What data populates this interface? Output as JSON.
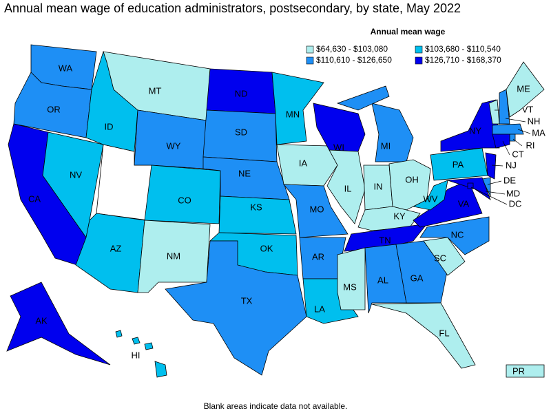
{
  "title": "Annual mean wage of education administrators, postsecondary, by state, May 2022",
  "legend": {
    "title": "Annual mean wage",
    "items": [
      {
        "label": "$64,630 - $103,080",
        "color": "#aeeeee"
      },
      {
        "label": "$103,680 - $110,540",
        "color": "#00bfee"
      },
      {
        "label": "$110,610 - $126,650",
        "color": "#1e8ff5"
      },
      {
        "label": "$126,710 - $168,370",
        "color": "#0000ee"
      }
    ]
  },
  "states": [
    {
      "label": "WA",
      "class": 2
    },
    {
      "label": "OR",
      "class": 2
    },
    {
      "label": "CA",
      "class": 3
    },
    {
      "label": "NV",
      "class": 1
    },
    {
      "label": "ID",
      "class": 1
    },
    {
      "label": "MT",
      "class": 0
    },
    {
      "label": "WY",
      "class": 2
    },
    {
      "label": "CO",
      "class": 1
    },
    {
      "label": "AZ",
      "class": 1
    },
    {
      "label": "NM",
      "class": 0
    },
    {
      "label": "ND",
      "class": 3
    },
    {
      "label": "SD",
      "class": 2
    },
    {
      "label": "NE",
      "class": 2
    },
    {
      "label": "KS",
      "class": 1
    },
    {
      "label": "OK",
      "class": 1
    },
    {
      "label": "TX",
      "class": 2
    },
    {
      "label": "MN",
      "class": 1
    },
    {
      "label": "IA",
      "class": 0
    },
    {
      "label": "MO",
      "class": 2
    },
    {
      "label": "AR",
      "class": 2
    },
    {
      "label": "LA",
      "class": 1
    },
    {
      "label": "WI",
      "class": 3
    },
    {
      "label": "IL",
      "class": 0
    },
    {
      "label": "MI",
      "class": 2
    },
    {
      "label": "IN",
      "class": 0
    },
    {
      "label": "OH",
      "class": 0
    },
    {
      "label": "KY",
      "class": 0
    },
    {
      "label": "TN",
      "class": 3
    },
    {
      "label": "MS",
      "class": 0
    },
    {
      "label": "AL",
      "class": 2
    },
    {
      "label": "GA",
      "class": 2
    },
    {
      "label": "FL",
      "class": 0
    },
    {
      "label": "SC",
      "class": 0
    },
    {
      "label": "NC",
      "class": 2
    },
    {
      "label": "VA",
      "class": 3
    },
    {
      "label": "WV",
      "class": 1
    },
    {
      "label": "PA",
      "class": 1
    },
    {
      "label": "NY",
      "class": 3
    },
    {
      "label": "NJ",
      "class": 3
    },
    {
      "label": "DE",
      "class": 2
    },
    {
      "label": "MD",
      "class": 3
    },
    {
      "label": "VT",
      "class": 0
    },
    {
      "label": "NH",
      "class": 2
    },
    {
      "label": "ME",
      "class": 0
    },
    {
      "label": "MA",
      "class": 2
    },
    {
      "label": "RI",
      "class": 2
    },
    {
      "label": "CT",
      "class": 3
    },
    {
      "label": "DC",
      "class": 3
    },
    {
      "label": "AK",
      "class": 3
    },
    {
      "label": "HI",
      "class": 1
    },
    {
      "label": "PR",
      "class": 0
    }
  ],
  "footnote": "Blank areas indicate data not available."
}
